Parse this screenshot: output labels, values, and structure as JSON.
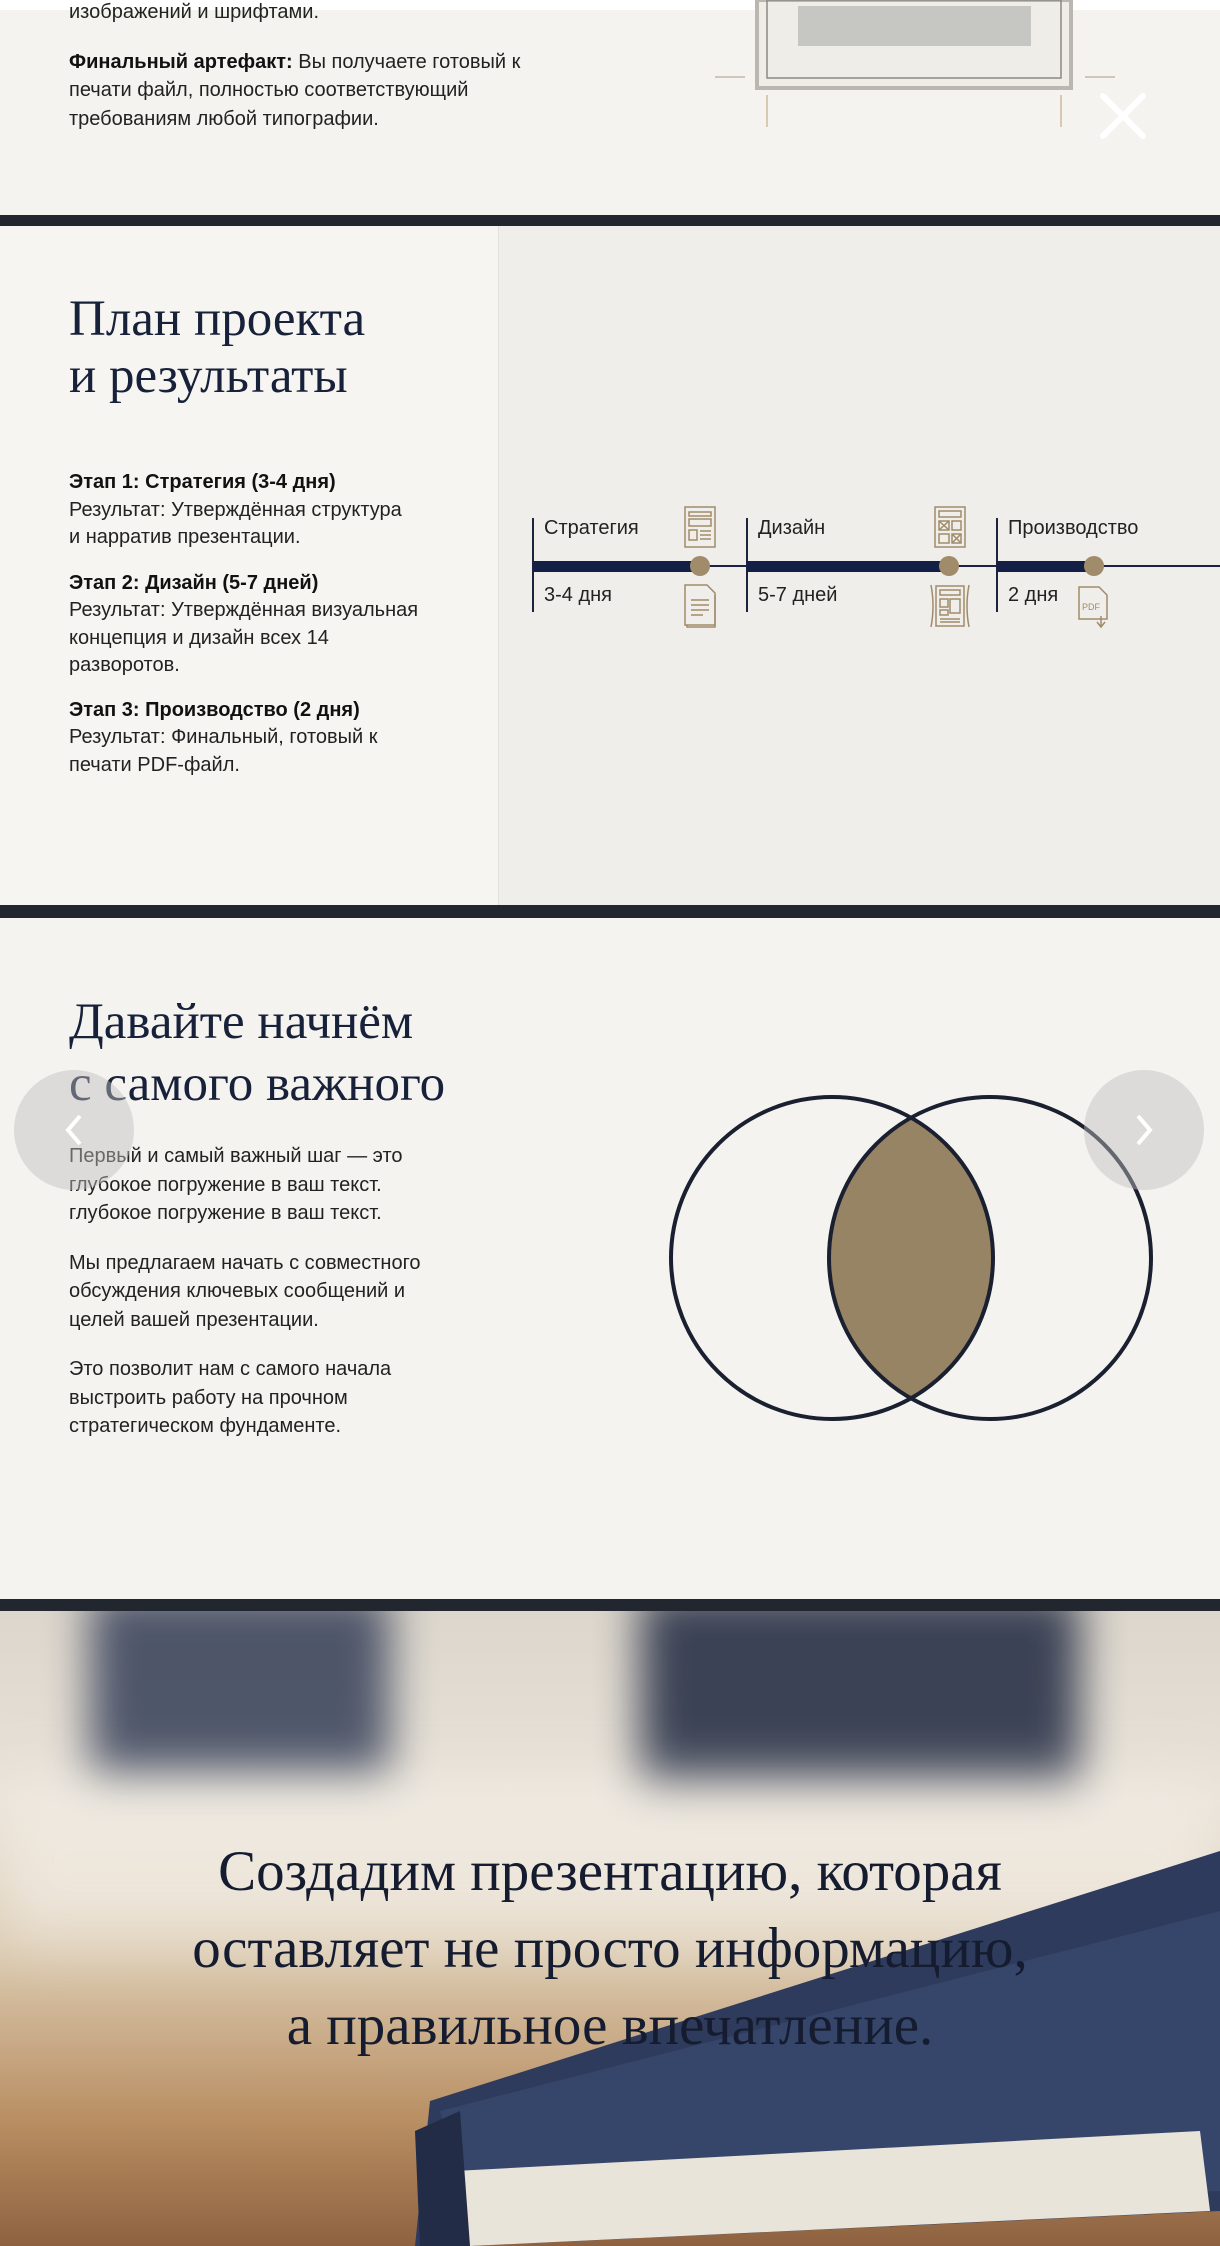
{
  "section_deliverable": {
    "line_top": "изображений и шрифтами.",
    "final_label": "Финальный артефакт:",
    "final_text": " Вы получаете готовый к",
    "final_lines": [
      "печати файл, полностью соответствующий",
      "требованиям любой типографии."
    ],
    "close_icon": "close-x"
  },
  "plan": {
    "title_lines": [
      "План проекта",
      "и результаты"
    ],
    "stages": [
      {
        "heading": "Этап 1: Стратегия (3-4 дня)",
        "lines": [
          "Результат: Утверждённая структура",
          "и нарратив презентации."
        ]
      },
      {
        "heading": "Этап 2: Дизайн (5-7 дней)",
        "lines": [
          "Результат: Утверждённая визуальная",
          "концепция и дизайн всех 14",
          "разворотов."
        ]
      },
      {
        "heading": "Этап 3: Производство (2 дня)",
        "lines": [
          "Результат: Финальный, готовый к",
          "печати PDF-файл."
        ]
      }
    ],
    "timeline": [
      {
        "label": "Стратегия",
        "duration": "3-4 дня",
        "icons": [
          "layout-document-icon",
          "text-document-icon"
        ]
      },
      {
        "label": "Дизайн",
        "duration": "5-7 дней",
        "icons": [
          "grid-layout-icon",
          "spread-layout-icon"
        ]
      },
      {
        "label": "Производство",
        "duration": "2 дня",
        "icons": [
          "pdf-download-icon"
        ],
        "pdf_text": "PDF"
      }
    ]
  },
  "start": {
    "title_lines": [
      "Давайте начнём",
      "с самого важного"
    ],
    "paragraphs": [
      [
        "Первый и самый важный шаг — это",
        "глубокое погружение в ваш текст.",
        "глубокое погружение в ваш текст."
      ],
      [
        "Мы предлагаем начать с совместного",
        "обсуждения ключевых сообщений и",
        "целей вашей презентации."
      ],
      [
        "Это позволит нам с самого начала",
        "выстроить работу на прочном",
        "стратегическом фундаменте."
      ]
    ],
    "prev_icon": "chevron-left",
    "next_icon": "chevron-right"
  },
  "closing": {
    "quote_lines": [
      "Создадим презентацию, которая",
      "оставляет не просто информацию,",
      "а правильное впечатление."
    ]
  },
  "colors": {
    "navy": "#131f44",
    "gold": "#978464",
    "divider": "#22262f",
    "paper": "#f5f4f0"
  }
}
